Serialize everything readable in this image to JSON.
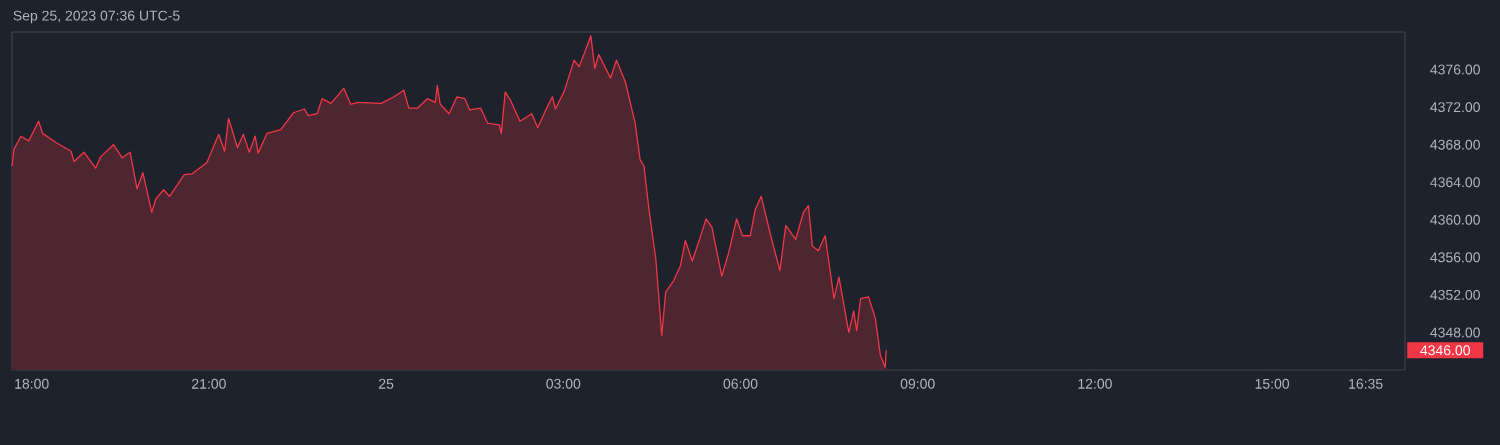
{
  "chart_data": {
    "type": "area",
    "title": "Sep 25, 2023 07:36 UTC-5",
    "x": [
      "2023-09-24T17:40",
      "2023-09-24T17:42",
      "2023-09-24T17:49",
      "2023-09-24T17:57",
      "2023-09-24T18:07",
      "2023-09-24T18:11",
      "2023-09-24T18:25",
      "2023-09-24T18:40",
      "2023-09-24T18:43",
      "2023-09-24T18:53",
      "2023-09-24T19:05",
      "2023-09-24T19:10",
      "2023-09-24T19:23",
      "2023-09-24T19:32",
      "2023-09-24T19:40",
      "2023-09-24T19:47",
      "2023-09-24T19:53",
      "2023-09-24T20:02",
      "2023-09-24T20:06",
      "2023-09-24T20:14",
      "2023-09-24T20:20",
      "2023-09-24T20:35",
      "2023-09-24T20:43",
      "2023-09-24T20:58",
      "2023-09-24T21:10",
      "2023-09-24T21:16",
      "2023-09-24T21:20",
      "2023-09-24T21:29",
      "2023-09-24T21:35",
      "2023-09-24T21:41",
      "2023-09-24T21:47",
      "2023-09-24T21:50",
      "2023-09-24T21:59",
      "2023-09-24T22:13",
      "2023-09-24T22:26",
      "2023-09-24T22:37",
      "2023-09-24T22:41",
      "2023-09-24T22:50",
      "2023-09-24T22:55",
      "2023-09-24T23:04",
      "2023-09-24T23:17",
      "2023-09-24T23:24",
      "2023-09-24T23:31",
      "2023-09-24T23:55",
      "2023-09-25T00:08",
      "2023-09-25T00:18",
      "2023-09-25T00:23",
      "2023-09-25T00:32",
      "2023-09-25T00:42",
      "2023-09-25T00:50",
      "2023-09-25T00:52",
      "2023-09-25T00:55",
      "2023-09-25T01:04",
      "2023-09-25T01:12",
      "2023-09-25T01:20",
      "2023-09-25T01:25",
      "2023-09-25T01:36",
      "2023-09-25T01:43",
      "2023-09-25T01:55",
      "2023-09-25T01:57",
      "2023-09-25T02:01",
      "2023-09-25T02:06",
      "2023-09-25T02:16",
      "2023-09-25T02:28",
      "2023-09-25T02:34",
      "2023-09-25T02:44",
      "2023-09-25T02:49",
      "2023-09-25T02:52",
      "2023-09-25T03:01",
      "2023-09-25T03:11",
      "2023-09-25T03:16",
      "2023-09-25T03:22",
      "2023-09-25T03:28",
      "2023-09-25T03:32",
      "2023-09-25T03:36",
      "2023-09-25T03:48",
      "2023-09-25T03:54",
      "2023-09-25T04:03",
      "2023-09-25T04:13",
      "2023-09-25T04:18",
      "2023-09-25T04:22",
      "2023-09-25T04:27",
      "2023-09-25T04:34",
      "2023-09-25T04:40",
      "2023-09-25T04:44",
      "2023-09-25T04:52",
      "2023-09-25T04:59",
      "2023-09-25T05:04",
      "2023-09-25T05:11",
      "2023-09-25T05:19",
      "2023-09-25T05:25",
      "2023-09-25T05:31",
      "2023-09-25T05:41",
      "2023-09-25T05:48",
      "2023-09-25T05:56",
      "2023-09-25T06:02",
      "2023-09-25T06:10",
      "2023-09-25T06:15",
      "2023-09-25T06:21",
      "2023-09-25T06:30",
      "2023-09-25T06:40",
      "2023-09-25T06:46",
      "2023-09-25T06:56",
      "2023-09-25T07:04",
      "2023-09-25T07:09",
      "2023-09-25T07:13",
      "2023-09-25T07:19",
      "2023-09-25T07:26",
      "2023-09-25T07:35",
      "2023-09-25T07:40",
      "2023-09-25T07:50",
      "2023-09-25T07:55",
      "2023-09-25T07:58",
      "2023-09-25T08:02",
      "2023-09-25T08:10",
      "2023-09-25T08:17",
      "2023-09-25T08:22",
      "2023-09-25T08:27",
      "2023-09-25T08:28"
    ],
    "series": [
      {
        "color": "#f23645",
        "values": [
          4365.7,
          4367.5,
          4368.9,
          4368.4,
          4370.5,
          4369.2,
          4368.2,
          4367.3,
          4366.2,
          4367.2,
          4365.5,
          4366.7,
          4368.0,
          4366.6,
          4367.2,
          4363.3,
          4365.0,
          4360.8,
          4362.2,
          4363.2,
          4362.5,
          4364.8,
          4364.9,
          4366.1,
          4369.1,
          4367.3,
          4370.8,
          4367.7,
          4369.1,
          4367.2,
          4368.9,
          4367.1,
          4369.2,
          4369.6,
          4371.4,
          4371.8,
          4371.1,
          4371.3,
          4372.9,
          4372.4,
          4374.0,
          4372.3,
          4372.5,
          4372.4,
          4373.1,
          4373.8,
          4371.9,
          4371.9,
          4372.9,
          4372.5,
          4374.3,
          4372.3,
          4371.3,
          4373.1,
          4372.9,
          4371.7,
          4371.9,
          4370.3,
          4370.1,
          4369.2,
          4373.6,
          4372.8,
          4370.5,
          4371.3,
          4369.8,
          4372.1,
          4373.1,
          4371.8,
          4373.7,
          4377.0,
          4376.3,
          4377.9,
          4379.6,
          4376.1,
          4377.6,
          4375.1,
          4377.0,
          4374.7,
          4370.3,
          4366.4,
          4365.7,
          4361.1,
          4355.8,
          4347.7,
          4352.3,
          4353.5,
          4355.1,
          4357.8,
          4355.6,
          4358.1,
          4360.1,
          4359.2,
          4354.0,
          4356.5,
          4360.1,
          4358.3,
          4358.3,
          4361.1,
          4362.5,
          4358.6,
          4354.6,
          4359.4,
          4357.9,
          4360.8,
          4361.5,
          4357.2,
          4356.7,
          4358.3,
          4351.6,
          4353.9,
          4348.0,
          4350.3,
          4348.2,
          4351.6,
          4351.8,
          4349.5,
          4345.6,
          4344.3,
          4346.1
        ]
      }
    ],
    "xlim": [
      "2023-09-24T17:40",
      "2023-09-25T17:15"
    ],
    "xticks": [
      {
        "value": "2023-09-24T18:00",
        "label": "18:00"
      },
      {
        "value": "2023-09-24T21:00",
        "label": "21:00"
      },
      {
        "value": "2023-09-25T00:00",
        "label": "25"
      },
      {
        "value": "2023-09-25T03:00",
        "label": "03:00"
      },
      {
        "value": "2023-09-25T06:00",
        "label": "06:00"
      },
      {
        "value": "2023-09-25T09:00",
        "label": "09:00"
      },
      {
        "value": "2023-09-25T12:00",
        "label": "12:00"
      },
      {
        "value": "2023-09-25T15:00",
        "label": "15:00"
      },
      {
        "value": "2023-09-25T16:35",
        "label": "16:35"
      }
    ],
    "ylim": [
      4344,
      4380
    ],
    "yticks": [
      {
        "value": 4348,
        "label": "4348.00"
      },
      {
        "value": 4352,
        "label": "4352.00"
      },
      {
        "value": 4356,
        "label": "4356.00"
      },
      {
        "value": 4360,
        "label": "4360.00"
      },
      {
        "value": 4364,
        "label": "4364.00"
      },
      {
        "value": 4368,
        "label": "4368.00"
      },
      {
        "value": 4372,
        "label": "4372.00"
      },
      {
        "value": 4376,
        "label": "4376.00"
      }
    ],
    "annotations": [
      "4346.00"
    ]
  }
}
